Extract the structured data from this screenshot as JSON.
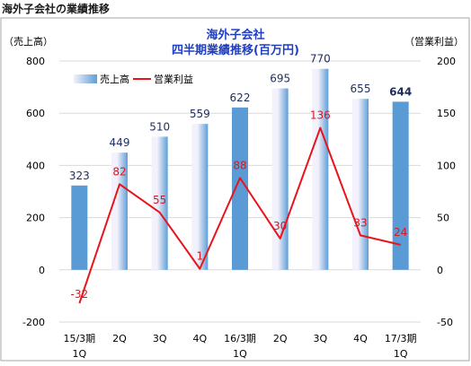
{
  "page_heading": "海外子会社の業績推移",
  "chart_data": {
    "type": "bar+line",
    "title_line1": "海外子会社",
    "title_line2": "四半期業績推移(百万円)",
    "left_axis_label": "（売上高）",
    "right_axis_label": "（営業利益）",
    "categories": [
      [
        "15/3期",
        "1Q"
      ],
      [
        "2Q"
      ],
      [
        "3Q"
      ],
      [
        "4Q"
      ],
      [
        "16/3期",
        "1Q"
      ],
      [
        "2Q"
      ],
      [
        "3Q"
      ],
      [
        "4Q"
      ],
      [
        "17/3期",
        "1Q"
      ]
    ],
    "left_axis": {
      "min": -200,
      "max": 800,
      "ticks": [
        -200,
        0,
        200,
        400,
        600,
        800
      ]
    },
    "right_axis": {
      "min": -50,
      "max": 200,
      "ticks": [
        -50,
        0,
        50,
        100,
        150,
        200
      ]
    },
    "series": [
      {
        "name": "売上高",
        "type": "bar",
        "axis": "left",
        "values": [
          323,
          449,
          510,
          559,
          622,
          695,
          770,
          655,
          644
        ],
        "labels": [
          "323",
          "449",
          "510",
          "559",
          "622",
          "695",
          "770",
          "655",
          "644"
        ],
        "highlight": [
          true,
          false,
          false,
          false,
          true,
          false,
          false,
          false,
          true
        ]
      },
      {
        "name": "営業利益",
        "type": "line",
        "axis": "right",
        "values": [
          -32,
          82,
          55,
          1,
          88,
          30,
          136,
          33,
          24
        ],
        "labels": [
          "-32",
          "82",
          "55",
          "1",
          "88",
          "30",
          "136",
          "33",
          "24"
        ]
      }
    ],
    "legend": "top-left",
    "colors": {
      "bar_solid": "#5b9bd5",
      "bar_gradient_light": "#f3f1fb",
      "bar_gradient_dark": "#5f9ed8",
      "line": "#e8141c",
      "title": "#1f3fbf",
      "bar_label": "#1f2d5c",
      "line_label": "#d81820",
      "gridline": "#d9d9d9",
      "frame": "#a6a6a6"
    }
  }
}
